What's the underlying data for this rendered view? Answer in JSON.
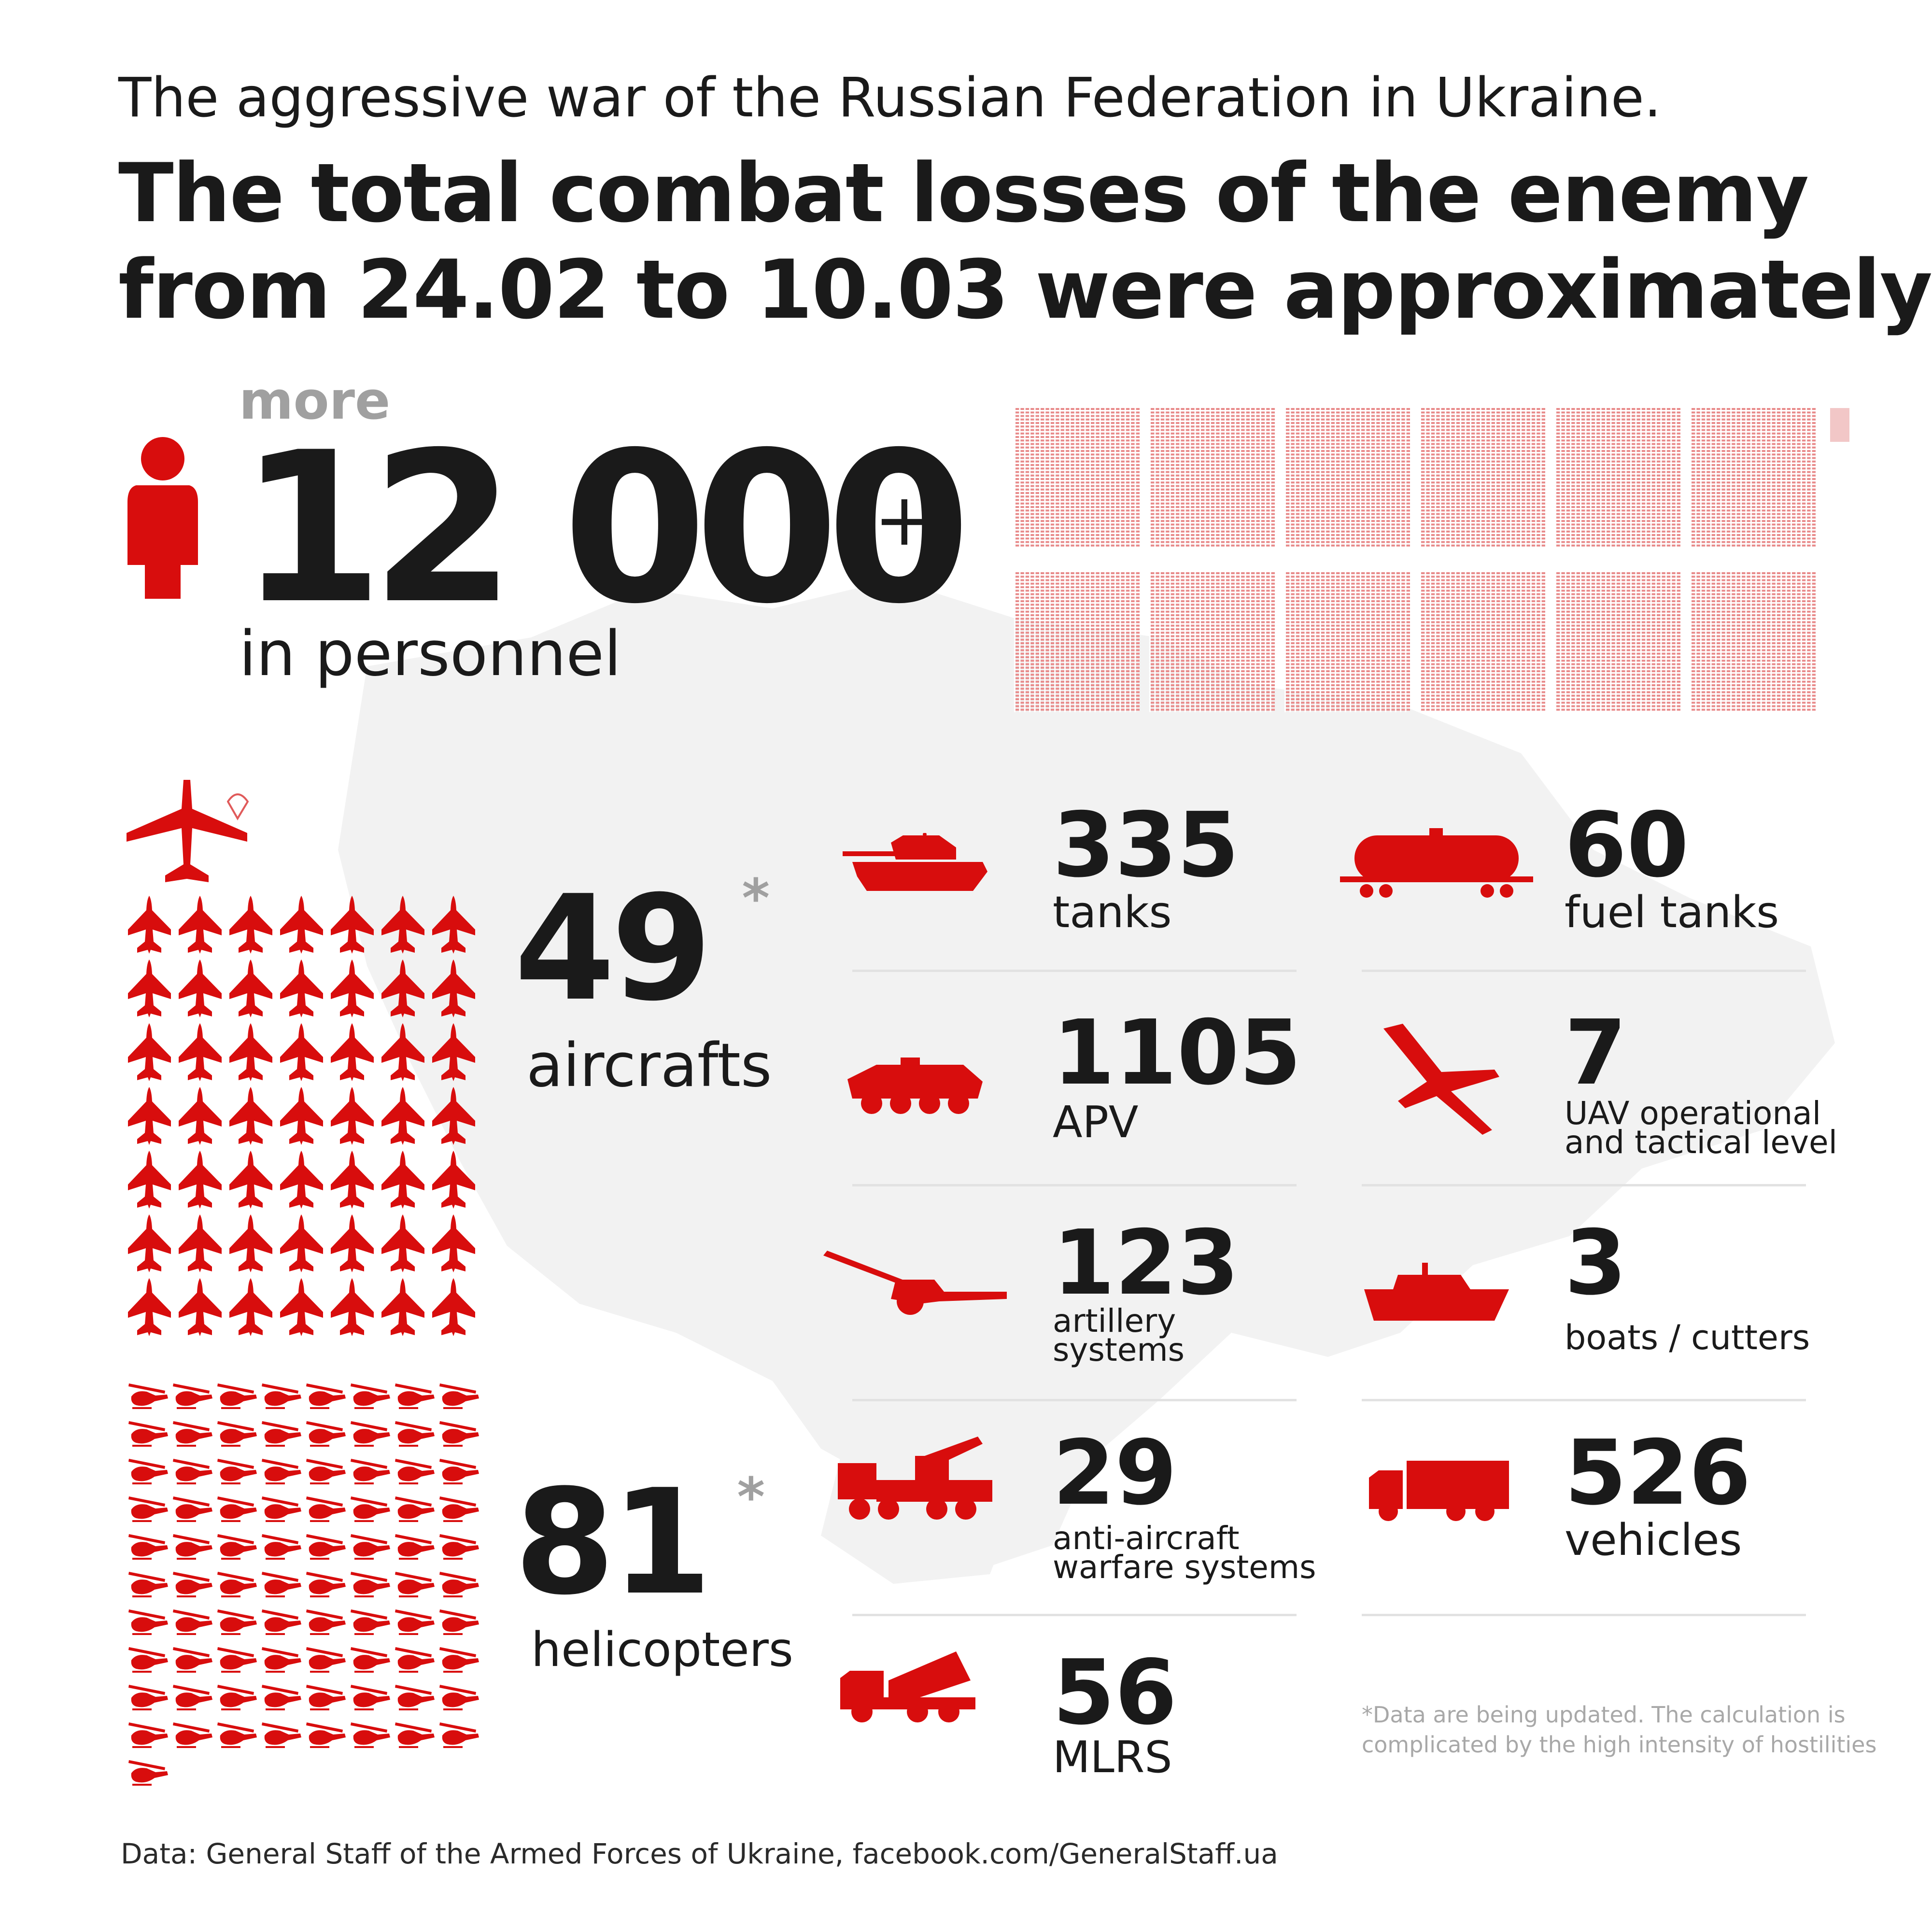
{
  "colors": {
    "blue": "#0b7fce",
    "yellow": "#ffdf00",
    "red": "#d80d0d",
    "dark": "#1a1a1a",
    "grey": "#a0a0a0"
  },
  "header": {
    "subtitle": "The aggressive war of the Russian Federation in Ukraine.",
    "title_line1": "The total combat losses of the enemy",
    "title_line2": "from 24.02 to 10.03 were approximately",
    "title_asterisk": "*"
  },
  "personnel": {
    "prefix": "more",
    "number": "12 000",
    "suffix": "+",
    "label": "in personnel",
    "icon": "soldier-icon"
  },
  "aircraft": {
    "number": "49",
    "asterisk": "*",
    "label": "aircrafts",
    "icons": "fighter-jet-icon",
    "count": 49
  },
  "helicopters": {
    "number": "81",
    "asterisk": "*",
    "label": "helicopters",
    "icons": "helicopter-icon",
    "count": 81
  },
  "stats": [
    {
      "id": "tanks",
      "number": "335",
      "label_lines": [
        "tanks"
      ],
      "icon": "tank-icon"
    },
    {
      "id": "fuel-tanks",
      "number": "60",
      "label_lines": [
        "fuel tanks"
      ],
      "icon": "fuel-tank-car-icon"
    },
    {
      "id": "apv",
      "number": "1105",
      "label_lines": [
        "APV"
      ],
      "icon": "apc-icon"
    },
    {
      "id": "uav",
      "number": "7",
      "label_lines": [
        "UAV operational",
        "and tactical level"
      ],
      "icon": "drone-icon"
    },
    {
      "id": "artillery",
      "number": "123",
      "label_lines": [
        "artillery",
        "systems"
      ],
      "icon": "howitzer-icon"
    },
    {
      "id": "boats",
      "number": "3",
      "label_lines": [
        "boats / cutters"
      ],
      "icon": "boat-icon"
    },
    {
      "id": "anti-aircraft",
      "number": "29",
      "label_lines": [
        "anti-aircraft",
        "warfare systems"
      ],
      "icon": "anti-aircraft-icon"
    },
    {
      "id": "vehicles",
      "number": "526",
      "label_lines": [
        "vehicles"
      ],
      "icon": "truck-icon"
    },
    {
      "id": "mlrs",
      "number": "56",
      "label_lines": [
        "MLRS"
      ],
      "icon": "mlrs-icon"
    }
  ],
  "note": {
    "line1": "*Data are being updated. The calculation is",
    "line2": "complicated by the high intensity of hostilities"
  },
  "source": "Data: General Staff of the Armed Forces of Ukraine, facebook.com/GeneralStaff.ua"
}
